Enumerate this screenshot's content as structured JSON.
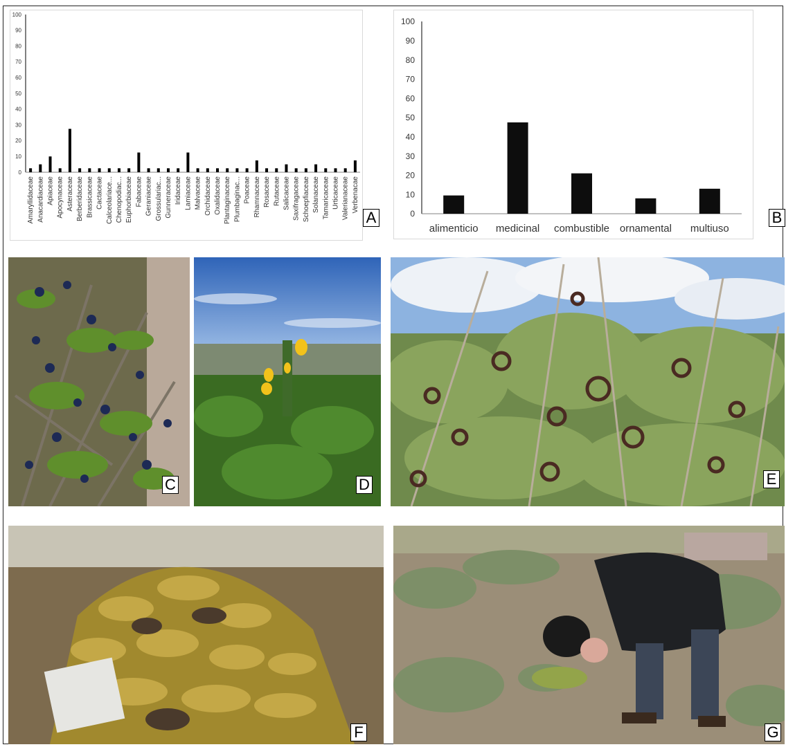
{
  "panel_labels": [
    "A",
    "B",
    "C",
    "D",
    "E",
    "F",
    "G"
  ],
  "chart_data": [
    {
      "type": "bar",
      "categories": [
        "Amaryllidaceae",
        "Anacardiaceae",
        "Apiaceae",
        "Apocynaceae",
        "Asteraceae",
        "Berberidaceae",
        "Brassicaceae",
        "Cactaceae",
        "Calceolariace...",
        "Chenopodiac...",
        "Euphorbiaceae",
        "Fabaceae",
        "Geraniaceae",
        "Grossulariac...",
        "Gunneraceae",
        "Iridaceae",
        "Lamiaceae",
        "Malvaceae",
        "Orchidaceae",
        "Oxalidaceae",
        "Plantaginaceae",
        "Plumbaginac...",
        "Poaceae",
        "Rhamnaceae",
        "Rosaceae",
        "Rutaceae",
        "Salicaceae",
        "Saxifragaceae",
        "Schoepfiaceae",
        "Solanaceae",
        "Tamaricaceae",
        "Urticaceae",
        "Valerianaceae",
        "Verbenacae"
      ],
      "values": [
        2.5,
        5,
        10,
        2.5,
        27.5,
        2.5,
        2.5,
        2.5,
        2.5,
        2.5,
        2.5,
        12.5,
        2.5,
        2.5,
        2.5,
        2.5,
        12.5,
        2.5,
        2.5,
        2.5,
        2.5,
        2.5,
        2.5,
        7.5,
        2.5,
        2.5,
        5,
        2.5,
        2.5,
        5,
        2.5,
        2.5,
        2.5,
        7.5
      ],
      "yticks": [
        "0",
        "10",
        "20",
        "30",
        "40",
        "50",
        "60",
        "70",
        "80",
        "90",
        "100"
      ],
      "ylim": [
        0,
        100
      ],
      "color": "#000000"
    },
    {
      "type": "bar",
      "categories": [
        "alimenticio",
        "medicinal",
        "combustible",
        "ornamental",
        "multiuso"
      ],
      "values": [
        9.5,
        47.5,
        21,
        8,
        13
      ],
      "yticks": [
        "0",
        "10",
        "20",
        "30",
        "40",
        "50",
        "60",
        "70",
        "80",
        "90",
        "100"
      ],
      "ylim": [
        0,
        100
      ],
      "color": "#0d0d0d"
    }
  ],
  "photos": [
    {
      "label": "C",
      "subject": "shrub with dark blue berries"
    },
    {
      "label": "D",
      "subject": "green plant with yellow flowers"
    },
    {
      "label": "E",
      "subject": "shrub with coiled dark seed pods"
    },
    {
      "label": "F",
      "subject": "pile of dried cushion plant fuel"
    },
    {
      "label": "G",
      "subject": "man smelling a low plant"
    }
  ]
}
